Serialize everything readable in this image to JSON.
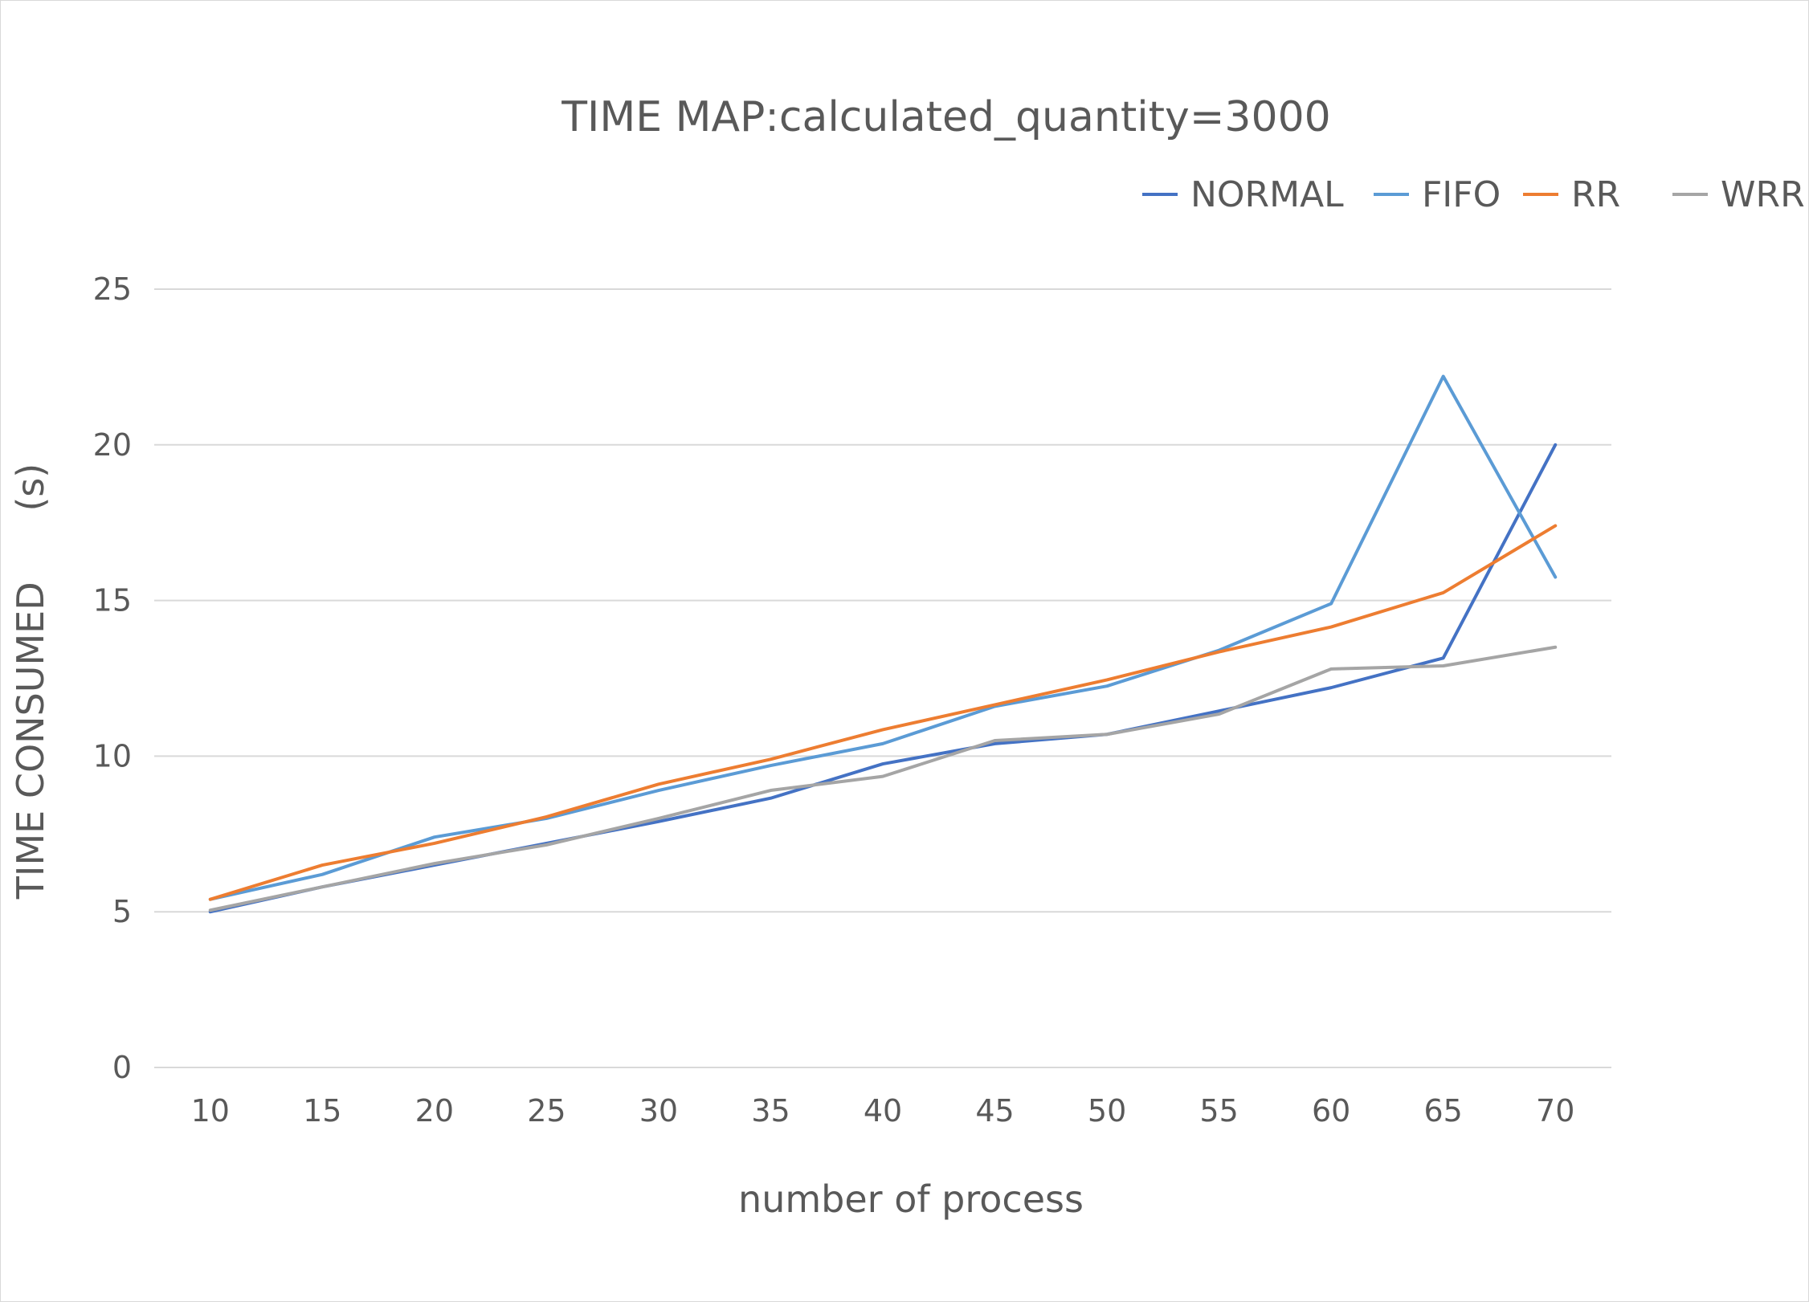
{
  "chart_data": {
    "type": "line",
    "title": "TIME MAP:calculated_quantity=3000",
    "xlabel": "number of process",
    "ylabel": "TIME CONSUMED      (s)",
    "x": [
      10,
      15,
      20,
      25,
      30,
      35,
      40,
      45,
      50,
      55,
      60,
      65,
      70
    ],
    "x_tick_labels": [
      "10",
      "15",
      "20",
      "25",
      "30",
      "35",
      "40",
      "45",
      "50",
      "55",
      "60",
      "65",
      "70"
    ],
    "y_tick_labels": [
      "0",
      "5",
      "10",
      "15",
      "20",
      "25"
    ],
    "ylim": [
      0,
      25
    ],
    "y_ticks": [
      0,
      5,
      10,
      15,
      20,
      25
    ],
    "grid": "horizontal",
    "legend_position": "top-right",
    "series": [
      {
        "name": "NORMAL",
        "color": "#4472c4",
        "values": [
          5.0,
          5.8,
          6.5,
          7.2,
          7.9,
          8.65,
          9.75,
          10.4,
          10.7,
          11.45,
          12.2,
          13.15,
          20.0
        ]
      },
      {
        "name": "FIFO",
        "color": "#5b9bd5",
        "values": [
          5.4,
          6.2,
          7.4,
          8.0,
          8.9,
          9.7,
          10.4,
          11.6,
          12.25,
          13.4,
          14.9,
          22.2,
          15.75
        ]
      },
      {
        "name": "RR",
        "color": "#ed7d31",
        "values": [
          5.4,
          6.5,
          7.2,
          8.05,
          9.1,
          9.9,
          10.85,
          11.65,
          12.45,
          13.35,
          14.15,
          15.25,
          17.4
        ]
      },
      {
        "name": "WRR",
        "color": "#a5a5a5",
        "values": [
          5.05,
          5.8,
          6.55,
          7.15,
          8.0,
          8.9,
          9.35,
          10.5,
          10.7,
          11.35,
          12.8,
          12.9,
          13.5
        ]
      }
    ]
  }
}
